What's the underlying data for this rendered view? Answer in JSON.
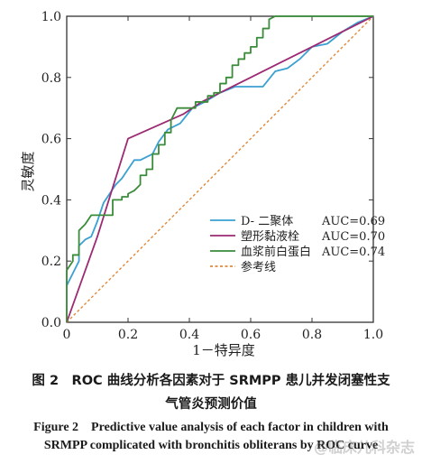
{
  "chart_data": {
    "type": "line",
    "xlabel": "1－特异度",
    "ylabel": "灵敏度",
    "xlim": [
      0,
      1
    ],
    "ylim": [
      0,
      1
    ],
    "xticks": [
      "0.2",
      "0.4",
      "0.6",
      "0.8",
      "1.0"
    ],
    "yticks": [
      "0.0",
      "0.2",
      "0.4",
      "0.6",
      "0.8",
      "1.0"
    ],
    "origin_label": "0",
    "legend_position": "lower-right",
    "series": [
      {
        "name": "D- 二聚体",
        "auc_label": "AUC=0.69",
        "color": "#3aa0d2",
        "points": [
          [
            0,
            0.12
          ],
          [
            0.02,
            0.16
          ],
          [
            0.04,
            0.2
          ],
          [
            0.04,
            0.25
          ],
          [
            0.06,
            0.27
          ],
          [
            0.08,
            0.28
          ],
          [
            0.1,
            0.33
          ],
          [
            0.12,
            0.39
          ],
          [
            0.14,
            0.42
          ],
          [
            0.16,
            0.45
          ],
          [
            0.18,
            0.47
          ],
          [
            0.2,
            0.5
          ],
          [
            0.22,
            0.53
          ],
          [
            0.24,
            0.53
          ],
          [
            0.26,
            0.54
          ],
          [
            0.28,
            0.55
          ],
          [
            0.3,
            0.59
          ],
          [
            0.33,
            0.63
          ],
          [
            0.37,
            0.65
          ],
          [
            0.41,
            0.7
          ],
          [
            0.45,
            0.72
          ],
          [
            0.5,
            0.75
          ],
          [
            0.55,
            0.77
          ],
          [
            0.6,
            0.77
          ],
          [
            0.64,
            0.77
          ],
          [
            0.68,
            0.82
          ],
          [
            0.72,
            0.83
          ],
          [
            0.76,
            0.86
          ],
          [
            0.8,
            0.9
          ],
          [
            0.85,
            0.91
          ],
          [
            0.9,
            0.95
          ],
          [
            0.95,
            0.98
          ],
          [
            1,
            1
          ]
        ]
      },
      {
        "name": "塑形黏液栓",
        "auc_label": "AUC=0.70",
        "color": "#9c2a72",
        "points": [
          [
            0,
            0
          ],
          [
            0.1,
            0.28
          ],
          [
            0.2,
            0.6
          ],
          [
            0.38,
            0.68
          ],
          [
            0.44,
            0.72
          ],
          [
            0.5,
            0.75
          ],
          [
            0.56,
            0.78
          ],
          [
            0.6,
            0.8
          ],
          [
            0.7,
            0.85
          ],
          [
            0.8,
            0.9
          ],
          [
            0.9,
            0.95
          ],
          [
            1,
            1
          ]
        ]
      },
      {
        "name": "血浆前白蛋白",
        "auc_label": "AUC=0.74",
        "color": "#3a8c3a",
        "points": [
          [
            0,
            0
          ],
          [
            0,
            0.17
          ],
          [
            0.02,
            0.2
          ],
          [
            0.02,
            0.22
          ],
          [
            0.04,
            0.22
          ],
          [
            0.04,
            0.3
          ],
          [
            0.06,
            0.32
          ],
          [
            0.08,
            0.35
          ],
          [
            0.15,
            0.35
          ],
          [
            0.15,
            0.4
          ],
          [
            0.18,
            0.4
          ],
          [
            0.18,
            0.41
          ],
          [
            0.2,
            0.41
          ],
          [
            0.2,
            0.42
          ],
          [
            0.22,
            0.43
          ],
          [
            0.24,
            0.45
          ],
          [
            0.24,
            0.48
          ],
          [
            0.26,
            0.48
          ],
          [
            0.26,
            0.5
          ],
          [
            0.28,
            0.5
          ],
          [
            0.28,
            0.55
          ],
          [
            0.3,
            0.55
          ],
          [
            0.3,
            0.58
          ],
          [
            0.32,
            0.58
          ],
          [
            0.32,
            0.62
          ],
          [
            0.34,
            0.62
          ],
          [
            0.34,
            0.66
          ],
          [
            0.36,
            0.7
          ],
          [
            0.42,
            0.7
          ],
          [
            0.42,
            0.72
          ],
          [
            0.46,
            0.72
          ],
          [
            0.46,
            0.74
          ],
          [
            0.48,
            0.74
          ],
          [
            0.48,
            0.75
          ],
          [
            0.5,
            0.75
          ],
          [
            0.5,
            0.78
          ],
          [
            0.52,
            0.78
          ],
          [
            0.52,
            0.8
          ],
          [
            0.54,
            0.8
          ],
          [
            0.54,
            0.84
          ],
          [
            0.56,
            0.84
          ],
          [
            0.56,
            0.86
          ],
          [
            0.58,
            0.86
          ],
          [
            0.58,
            0.88
          ],
          [
            0.6,
            0.88
          ],
          [
            0.6,
            0.9
          ],
          [
            0.62,
            0.9
          ],
          [
            0.62,
            0.93
          ],
          [
            0.64,
            0.93
          ],
          [
            0.64,
            0.96
          ],
          [
            0.66,
            0.96
          ],
          [
            0.66,
            0.99
          ],
          [
            0.68,
            1
          ],
          [
            1,
            1
          ]
        ]
      },
      {
        "name": "参考线",
        "auc_label": "",
        "color": "#e08a3c",
        "dashed": true,
        "points": [
          [
            0,
            0
          ],
          [
            1,
            1
          ]
        ]
      }
    ]
  },
  "captions": {
    "cn_line1": "图 2　ROC 曲线分析各因素对于 SRMPP 患儿并发闭塞性支",
    "cn_line2": "气管炎预测价值",
    "en_line1": "Figure 2　Predictive value analysis of each factor in children with",
    "en_line2": "SRMPP complicated with bronchitis obliterans by ROC curve"
  },
  "watermark": "@临床儿科杂志"
}
